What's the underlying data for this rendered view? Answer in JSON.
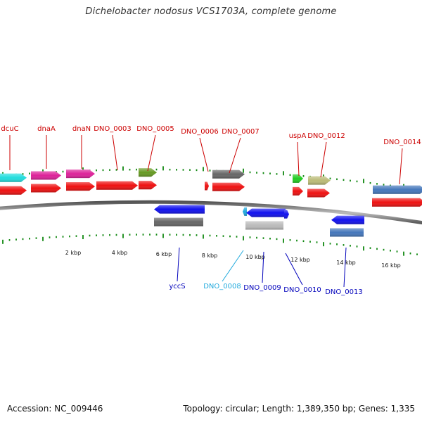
{
  "title": "Dichelobacter nodosus VCS1703A, complete genome",
  "footer": {
    "accession": "Accession: NC_009446",
    "summary": "Topology: circular; Length: 1,389,350 bp; Genes: 1,335"
  },
  "colors": {
    "red": "#ee1111",
    "cyan": "#22dddd",
    "magenta": "#dd2299",
    "olive": "#669922",
    "dark_gray": "#666666",
    "light_gray": "#bbbbbb",
    "blue": "#1111ee",
    "green": "#22cc22",
    "khaki": "#bbbb77",
    "steel_blue": "#4477bb",
    "tick_green": "#118811",
    "label_red": "#cc0000",
    "label_blue": "#0000bb",
    "label_cyan": "#22aadd"
  },
  "scale_labels": [
    "2 kbp",
    "4 kbp",
    "6 kbp",
    "8 kbp",
    "10 kbp",
    "12 kbp",
    "14 kbp",
    "16 kbp"
  ],
  "gene_labels": {
    "forward": [
      "dcuC",
      "dnaA",
      "dnaN",
      "DNO_0003",
      "DNO_0005",
      "DNO_0006",
      "DNO_0007",
      "uspA",
      "DNO_0012",
      "DNO_0014"
    ],
    "reverse": [
      "yccS",
      "DNO_0008",
      "DNO_0009",
      "DNO_0010",
      "DNO_0013"
    ]
  }
}
